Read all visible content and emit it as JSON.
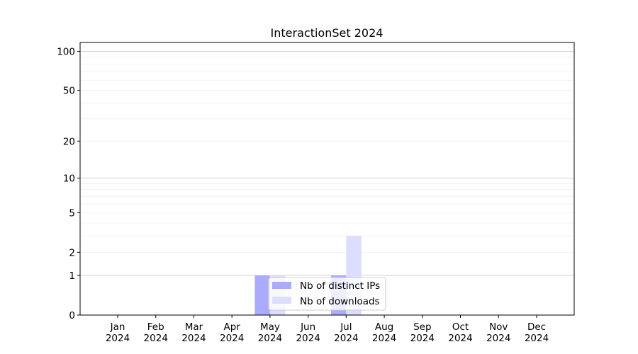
{
  "chart_data": {
    "type": "bar",
    "title": "InteractionSet 2024",
    "xlabel": "",
    "ylabel": "",
    "categories": [
      "Jan\n2024",
      "Feb\n2024",
      "Mar\n2024",
      "Apr\n2024",
      "May\n2024",
      "Jun\n2024",
      "Jul\n2024",
      "Aug\n2024",
      "Sep\n2024",
      "Oct\n2024",
      "Nov\n2024",
      "Dec\n2024"
    ],
    "series": [
      {
        "name": "Nb of distinct IPs",
        "color": "#aaaaff",
        "values": [
          0,
          0,
          0,
          0,
          1,
          0,
          1,
          0,
          0,
          0,
          0,
          0
        ]
      },
      {
        "name": "Nb of downloads",
        "color": "#ddddff",
        "values": [
          0,
          0,
          0,
          0,
          1,
          0,
          3,
          0,
          0,
          0,
          0,
          0
        ]
      }
    ],
    "yscale": "log(1+y)",
    "ylim": [
      0,
      117
    ],
    "yticks": [
      0,
      1,
      2,
      5,
      10,
      20,
      50,
      100
    ],
    "grid": true,
    "legend_position": "lower-center"
  }
}
